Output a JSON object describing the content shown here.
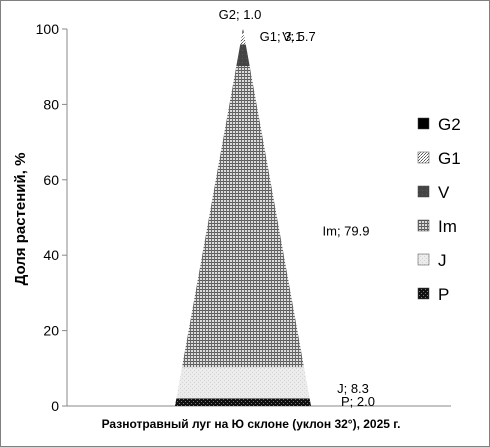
{
  "chart_data": {
    "type": "bar",
    "subtype": "stacked-pyramid",
    "xlabel": "Разнотравный луг на Ю склоне (уклон 32°), 2025 г.",
    "ylabel": "Доля растений, %",
    "ylim": [
      0,
      100
    ],
    "y_ticks": [
      "0",
      "20",
      "40",
      "60",
      "80",
      "100"
    ],
    "grid": false,
    "legend_position": "right",
    "series": [
      {
        "name": "P",
        "value": 2.0,
        "label": "P; 2.0",
        "pattern": "dark",
        "color": "#1a1a1a"
      },
      {
        "name": "J",
        "value": 8.3,
        "label": "J; 8.3",
        "pattern": "light",
        "color": "#e6e6e6"
      },
      {
        "name": "Im",
        "value": 79.9,
        "label": "Im; 79.9",
        "pattern": "hgrid",
        "color": "#8c8c8c"
      },
      {
        "name": "V",
        "value": 5.7,
        "label": "V; 5.7",
        "pattern": "solid",
        "color": "#4d4d4d"
      },
      {
        "name": "G1",
        "value": 3.1,
        "label": "G1; 3.1",
        "pattern": "dotted",
        "color": "#b0b0b0"
      },
      {
        "name": "G2",
        "value": 1.0,
        "label": "G2; 1.0",
        "pattern": "black",
        "color": "#000000"
      }
    ],
    "legend_order": [
      "G2",
      "G1",
      "V",
      "Im",
      "J",
      "P"
    ]
  }
}
